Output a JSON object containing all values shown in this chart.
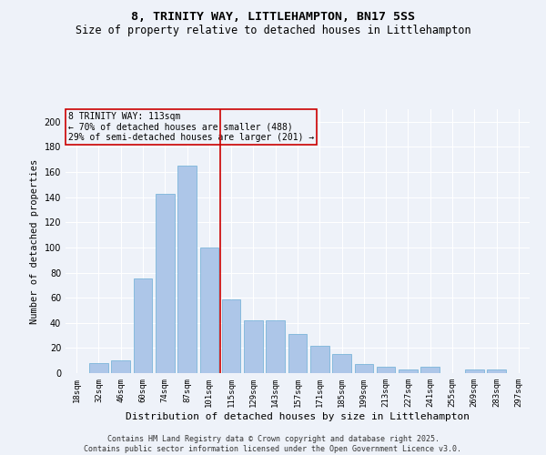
{
  "title1": "8, TRINITY WAY, LITTLEHAMPTON, BN17 5SS",
  "title2": "Size of property relative to detached houses in Littlehampton",
  "xlabel": "Distribution of detached houses by size in Littlehampton",
  "ylabel": "Number of detached properties",
  "categories": [
    "18sqm",
    "32sqm",
    "46sqm",
    "60sqm",
    "74sqm",
    "87sqm",
    "101sqm",
    "115sqm",
    "129sqm",
    "143sqm",
    "157sqm",
    "171sqm",
    "185sqm",
    "199sqm",
    "213sqm",
    "227sqm",
    "241sqm",
    "255sqm",
    "269sqm",
    "283sqm",
    "297sqm"
  ],
  "values": [
    0,
    8,
    10,
    75,
    143,
    165,
    100,
    59,
    42,
    42,
    31,
    22,
    15,
    7,
    5,
    3,
    5,
    0,
    3,
    3,
    0
  ],
  "bar_color": "#adc6e8",
  "bar_edge_color": "#6baed6",
  "vline_color": "#cc0000",
  "vline_x_index": 6,
  "annotation_text": "8 TRINITY WAY: 113sqm\n← 70% of detached houses are smaller (488)\n29% of semi-detached houses are larger (201) →",
  "ylim": [
    0,
    210
  ],
  "yticks": [
    0,
    20,
    40,
    60,
    80,
    100,
    120,
    140,
    160,
    180,
    200
  ],
  "footer1": "Contains HM Land Registry data © Crown copyright and database right 2025.",
  "footer2": "Contains public sector information licensed under the Open Government Licence v3.0.",
  "bg_color": "#eef2f9",
  "grid_color": "#ffffff",
  "title1_fontsize": 9.5,
  "title2_fontsize": 8.5,
  "xlabel_fontsize": 8,
  "ylabel_fontsize": 7.5,
  "tick_fontsize": 6.5,
  "annot_fontsize": 7,
  "footer_fontsize": 6
}
